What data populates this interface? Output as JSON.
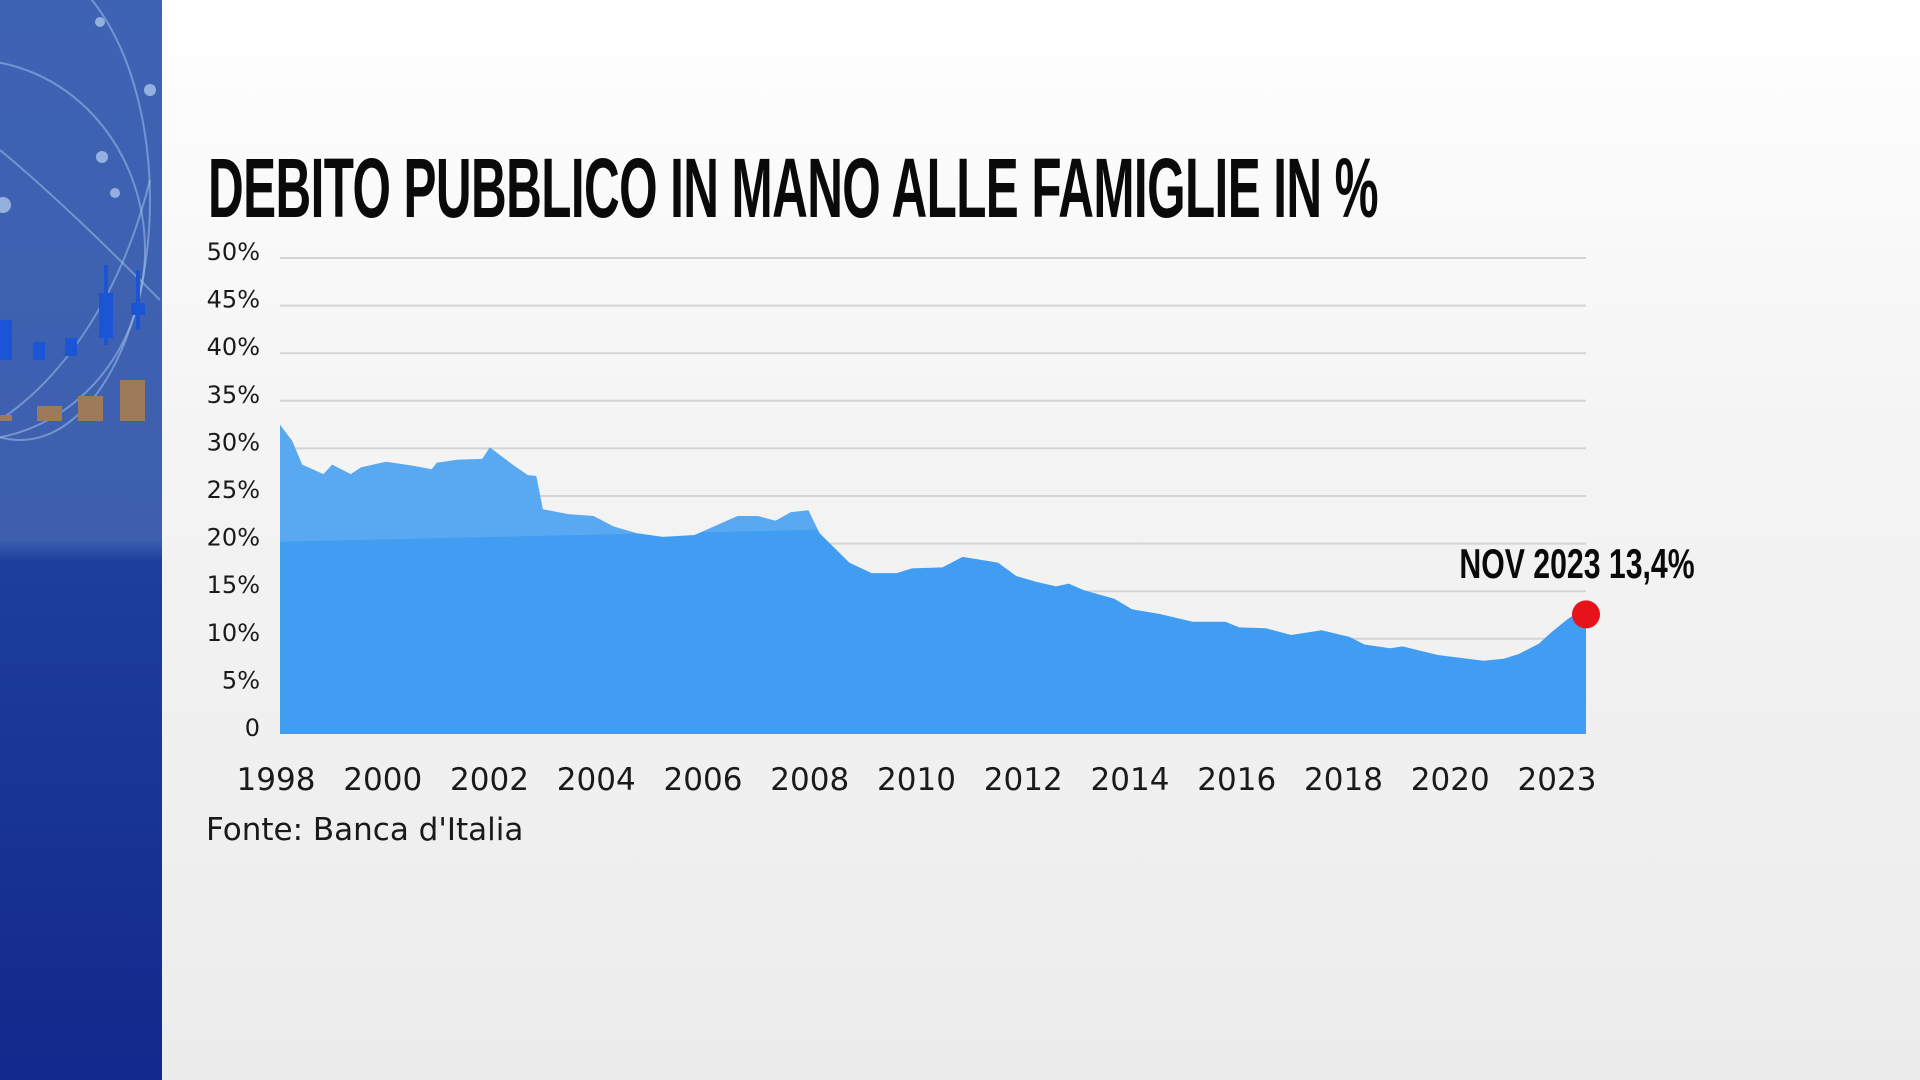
{
  "title": "DEBITO PUBBLICO IN MANO ALLE FAMIGLIE IN %",
  "source": "Fonte: Banca d'Italia",
  "colors": {
    "area": "#419df1",
    "marker": "#e8121b",
    "grid": "#d4d4d4",
    "side_panel": "#1f3f9e"
  },
  "chart_data": {
    "type": "area",
    "title": "DEBITO PUBBLICO IN MANO ALLE FAMIGLIE IN %",
    "xlabel": "",
    "ylabel": "",
    "ylim": [
      0,
      50
    ],
    "xlim": [
      1998,
      2023.83
    ],
    "grid": true,
    "y_ticks": [
      "0",
      "5%",
      "10%",
      "15%",
      "20%",
      "25%",
      "30%",
      "35%",
      "40%",
      "45%",
      "50%"
    ],
    "x_ticks": [
      "1998",
      "2000",
      "2002",
      "2004",
      "2006",
      "2008",
      "2010",
      "2012",
      "2014",
      "2016",
      "2018",
      "2020",
      "2023"
    ],
    "points": [
      [
        1998.0,
        32.5
      ],
      [
        1998.24,
        30.8
      ],
      [
        1998.44,
        28.3
      ],
      [
        1998.86,
        27.3
      ],
      [
        1999.03,
        28.3
      ],
      [
        1999.4,
        27.3
      ],
      [
        1999.6,
        28.0
      ],
      [
        2000.1,
        28.6
      ],
      [
        2000.6,
        28.2
      ],
      [
        2001.0,
        27.8
      ],
      [
        2001.1,
        28.5
      ],
      [
        2001.5,
        28.8
      ],
      [
        2002.0,
        28.9
      ],
      [
        2002.15,
        30.1
      ],
      [
        2002.6,
        28.3
      ],
      [
        2002.9,
        27.2
      ],
      [
        2003.07,
        27.1
      ],
      [
        2003.2,
        23.6
      ],
      [
        2003.7,
        23.1
      ],
      [
        2004.2,
        22.9
      ],
      [
        2004.6,
        21.8
      ],
      [
        2005.05,
        21.1
      ],
      [
        2005.57,
        20.7
      ],
      [
        2006.2,
        20.9
      ],
      [
        2007.05,
        22.9
      ],
      [
        2007.45,
        22.9
      ],
      [
        2007.8,
        22.4
      ],
      [
        2008.1,
        23.3
      ],
      [
        2008.45,
        23.5
      ],
      [
        2008.67,
        21.1
      ],
      [
        2009.26,
        18.0
      ],
      [
        2009.7,
        16.9
      ],
      [
        2010.2,
        16.9
      ],
      [
        2010.5,
        17.4
      ],
      [
        2011.1,
        17.5
      ],
      [
        2011.5,
        18.6
      ],
      [
        2012.2,
        18.0
      ],
      [
        2012.56,
        16.6
      ],
      [
        2012.95,
        16.0
      ],
      [
        2013.35,
        15.5
      ],
      [
        2013.6,
        15.8
      ],
      [
        2013.9,
        15.1
      ],
      [
        2014.5,
        14.2
      ],
      [
        2014.85,
        13.1
      ],
      [
        2015.4,
        12.6
      ],
      [
        2016.05,
        11.8
      ],
      [
        2016.7,
        11.8
      ],
      [
        2016.97,
        11.2
      ],
      [
        2017.5,
        11.1
      ],
      [
        2018.0,
        10.4
      ],
      [
        2018.6,
        10.9
      ],
      [
        2019.15,
        10.2
      ],
      [
        2019.45,
        9.4
      ],
      [
        2019.95,
        9.0
      ],
      [
        2020.2,
        9.2
      ],
      [
        2020.9,
        8.3
      ],
      [
        2021.8,
        7.7
      ],
      [
        2022.2,
        7.9
      ],
      [
        2022.5,
        8.4
      ],
      [
        2022.9,
        9.5
      ],
      [
        2023.15,
        10.7
      ],
      [
        2023.45,
        12.0
      ],
      [
        2023.83,
        13.4
      ]
    ],
    "annotation": {
      "label": "NOV 2023 13,4%",
      "x": 2023.83,
      "y": 13.4
    }
  }
}
